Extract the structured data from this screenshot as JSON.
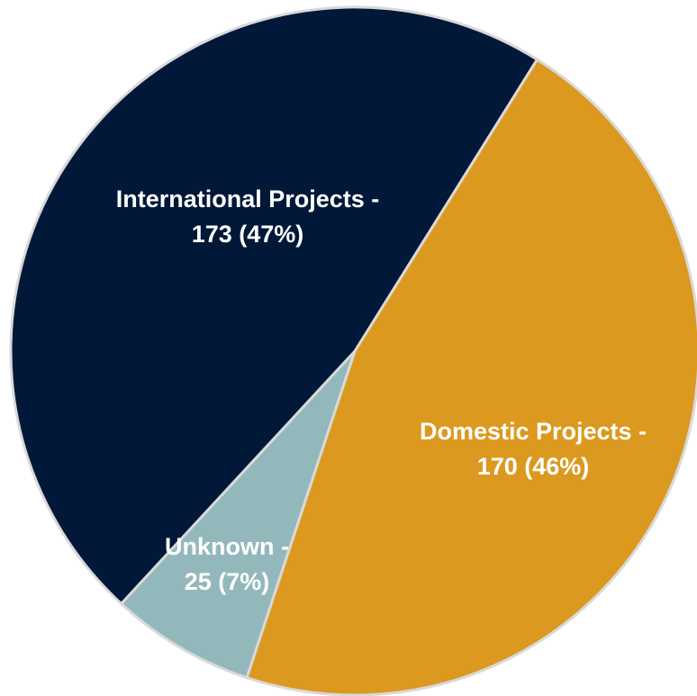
{
  "chart_data": {
    "type": "pie",
    "slices": [
      {
        "label_line1": "International Projects -",
        "label_line2": "173 (47%)",
        "category": "International Projects",
        "value": 173,
        "percent": 47,
        "color": "#011838",
        "label_color": "#ffffff"
      },
      {
        "label_line1": "Domestic Projects -",
        "label_line2": "170 (46%)",
        "category": "Domestic Projects",
        "value": 170,
        "percent": 46,
        "color": "#dc991f",
        "label_color": "#ffffff"
      },
      {
        "label_line1": "Unknown -",
        "label_line2": "25 (7%)",
        "category": "Unknown",
        "value": 25,
        "percent": 7,
        "color": "#92b8bc",
        "label_color": "#ffffff"
      }
    ]
  }
}
